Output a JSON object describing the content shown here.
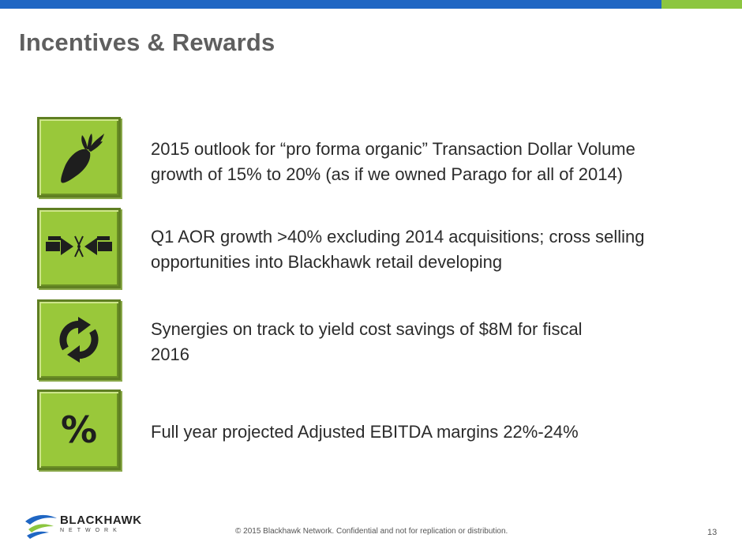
{
  "slide": {
    "title": "Incentives & Rewards",
    "page_number": "13",
    "footer": "© 2015 Blackhawk Network. Confidential and not for replication or distribution."
  },
  "logo": {
    "brand": "BLACKHAWK",
    "sub": "NETWORK"
  },
  "items": [
    {
      "icon": "carrot-icon",
      "text": "2015 outlook for “pro forma organic” Transaction Dollar Volume\ngrowth of 15% to 20% (as if we owned Parago for all of 2014)"
    },
    {
      "icon": "converging-arrows-icon",
      "text": "Q1 AOR growth >40% excluding 2014 acquisitions;  cross selling\nopportunities into Blackhawk retail developing"
    },
    {
      "icon": "refresh-icon",
      "text": "Synergies on track to yield cost savings of $8M for fiscal\n2016"
    },
    {
      "icon": "percent-icon",
      "symbol": "%",
      "text": "Full year projected Adjusted EBITDA margins 22%-24%"
    }
  ],
  "colors": {
    "top_bar_blue": "#1f66c3",
    "top_bar_green": "#8cc63f",
    "tile_green": "#99c83a",
    "title_gray": "#5f5f5f"
  }
}
